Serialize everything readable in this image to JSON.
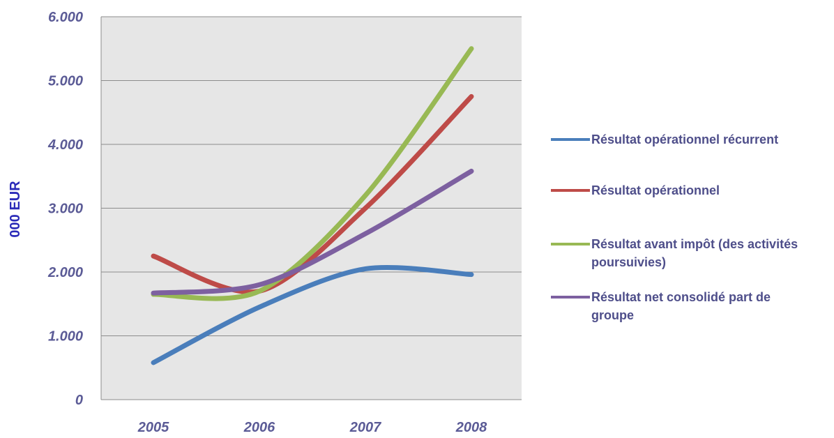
{
  "chart_data": {
    "type": "line",
    "title": "",
    "xlabel": "",
    "ylabel": "000 EUR",
    "categories": [
      "2005",
      "2006",
      "2007",
      "2008"
    ],
    "ylim": [
      0,
      6000
    ],
    "yticks": [
      0,
      1000,
      2000,
      3000,
      4000,
      5000,
      6000
    ],
    "ytick_labels": [
      "0",
      "1.000",
      "2.000",
      "3.000",
      "4.000",
      "5.000",
      "6.000"
    ],
    "grid": true,
    "plot_background": "#e6e6e6",
    "smooth": true,
    "legend_position": "right",
    "series": [
      {
        "name": "Résultat opérationnel récurrent",
        "name_lines": [
          "Résultat opérationnel récurrent"
        ],
        "color": "#4a7ebb",
        "values": [
          580,
          1450,
          2050,
          1960
        ]
      },
      {
        "name": "Résultat opérationnel",
        "name_lines": [
          "Résultat opérationnel"
        ],
        "color": "#be4b48",
        "values": [
          2250,
          1700,
          3000,
          4750
        ]
      },
      {
        "name": "Résultat avant impôt (des activités poursuivies)",
        "name_lines": [
          "Résultat avant impôt (des activités",
          "poursuivies)"
        ],
        "color": "#98b954",
        "values": [
          1650,
          1700,
          3200,
          5500
        ]
      },
      {
        "name": "Résultat net consolidé part de groupe",
        "name_lines": [
          "Résultat net consolidé part de",
          "groupe"
        ],
        "color": "#7d60a0",
        "values": [
          1670,
          1800,
          2600,
          3580
        ]
      }
    ]
  }
}
